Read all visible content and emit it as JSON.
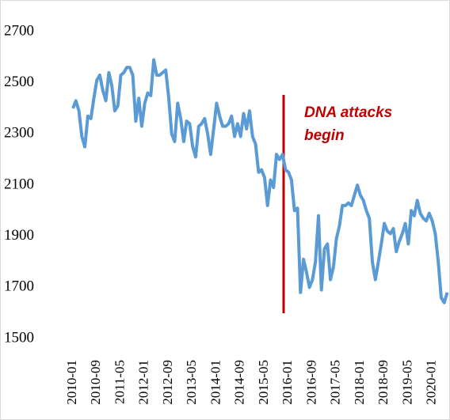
{
  "chart_data": {
    "type": "line",
    "annotation": [
      "DNA attacks",
      "begin"
    ],
    "categories": [
      "2010-01",
      null,
      null,
      null,
      null,
      null,
      null,
      null,
      "2010-09",
      null,
      null,
      null,
      null,
      null,
      null,
      null,
      "2011-05",
      null,
      null,
      null,
      null,
      null,
      null,
      null,
      "2012-01",
      null,
      null,
      null,
      null,
      null,
      null,
      null,
      "2012-09",
      null,
      null,
      null,
      null,
      null,
      null,
      null,
      "2013-05",
      null,
      null,
      null,
      null,
      null,
      null,
      null,
      "2014-01",
      null,
      null,
      null,
      null,
      null,
      null,
      null,
      "2014-09",
      null,
      null,
      null,
      null,
      null,
      null,
      null,
      "2015-05",
      null,
      null,
      null,
      null,
      null,
      null,
      null,
      "2016-01",
      null,
      null,
      null,
      null,
      null,
      null,
      null,
      "2016-09",
      null,
      null,
      null,
      null,
      null,
      null,
      null,
      "2017-05",
      null,
      null,
      null,
      null,
      null,
      null,
      null,
      "2018-01",
      null,
      null,
      null,
      null,
      null,
      null,
      null,
      "2018-09",
      null,
      null,
      null,
      null,
      null,
      null,
      null,
      "2019-05",
      null,
      null,
      null,
      null,
      null,
      null,
      null,
      "2020-01",
      null,
      null,
      null,
      null,
      null
    ],
    "series": [
      {
        "color": "#5b9bd5",
        "values": [
          2400,
          2430,
          2390,
          2290,
          2250,
          2370,
          2360,
          2440,
          2510,
          2530,
          2470,
          2430,
          2540,
          2490,
          2390,
          2410,
          2530,
          2540,
          2560,
          2560,
          2530,
          2350,
          2440,
          2330,
          2420,
          2460,
          2450,
          2590,
          2530,
          2530,
          2540,
          2550,
          2440,
          2300,
          2270,
          2420,
          2360,
          2270,
          2350,
          2340,
          2250,
          2210,
          2330,
          2340,
          2360,
          2300,
          2220,
          2320,
          2420,
          2370,
          2330,
          2330,
          2340,
          2370,
          2290,
          2340,
          2290,
          2380,
          2320,
          2390,
          2290,
          2260,
          2150,
          2160,
          2130,
          2020,
          2120,
          2090,
          2220,
          2200,
          2220,
          2160,
          2150,
          2120,
          2000,
          2010,
          1680,
          1810,
          1760,
          1700,
          1730,
          1800,
          1980,
          1690,
          1850,
          1870,
          1730,
          1780,
          1890,
          1940,
          2020,
          2020,
          2030,
          2020,
          2060,
          2100,
          2060,
          2040,
          2000,
          1970,
          1800,
          1730,
          1800,
          1870,
          1950,
          1920,
          1910,
          1930,
          1840,
          1880,
          1910,
          1950,
          1870,
          2000,
          1980,
          2040,
          1990,
          1970,
          1960,
          1990,
          1960,
          1910,
          1800,
          1660,
          1640,
          1680
        ]
      }
    ],
    "ylim": [
      1500,
      2700
    ],
    "yticks": [
      1500,
      1700,
      1900,
      2100,
      2300,
      2500,
      2700
    ]
  }
}
